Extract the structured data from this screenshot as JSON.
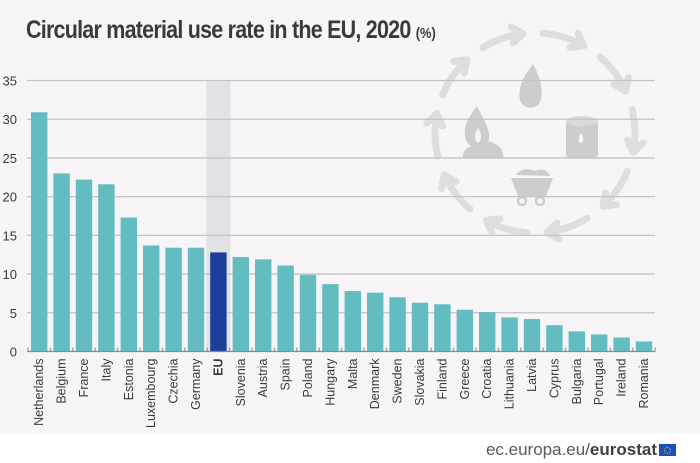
{
  "footer": {
    "url_prefix": "ec.europa.eu/",
    "url_brand": "eurostat"
  },
  "colors": {
    "bar": "#63bcc0",
    "bar_highlight": "#1a3f9a",
    "highlight_band": "#e4e1e6",
    "gridline": "#c4c2c6",
    "background": "#f8f5f8",
    "decoration": "#e0dde1",
    "decoration_icon": "#cfcccf"
  },
  "decoration": {
    "icons": [
      "recycle-arrows-circle-icon",
      "leaf-drop-icon",
      "oil-barrel-icon",
      "ore-cart-icon",
      "fire-coal-icon"
    ]
  },
  "chart_data": {
    "type": "bar",
    "title": "Circular material use rate in the EU, 2020",
    "title_unit": "(%)",
    "xlabel": "",
    "ylabel": "",
    "ylim": [
      0,
      35
    ],
    "yticks": [
      0,
      5,
      10,
      15,
      20,
      25,
      30,
      35
    ],
    "grid": true,
    "legend": "none",
    "highlight_category": "EU",
    "categories": [
      "Netherlands",
      "Belgium",
      "France",
      "Italy",
      "Estonia",
      "Luxembourg",
      "Czechia",
      "Germany",
      "EU",
      "Slovenia",
      "Austria",
      "Spain",
      "Poland",
      "Hungary",
      "Malta",
      "Denmark",
      "Sweden",
      "Slovakia",
      "Finland",
      "Greece",
      "Croatia",
      "Lithuania",
      "Latvia",
      "Cyprus",
      "Bulgaria",
      "Portugal",
      "Ireland",
      "Romania"
    ],
    "values": [
      30.9,
      23.0,
      22.2,
      21.6,
      17.3,
      13.7,
      13.4,
      13.4,
      12.8,
      12.2,
      11.9,
      11.1,
      9.9,
      8.7,
      7.8,
      7.6,
      7.0,
      6.3,
      6.1,
      5.4,
      5.1,
      4.4,
      4.2,
      3.4,
      2.6,
      2.2,
      1.8,
      1.3
    ]
  }
}
